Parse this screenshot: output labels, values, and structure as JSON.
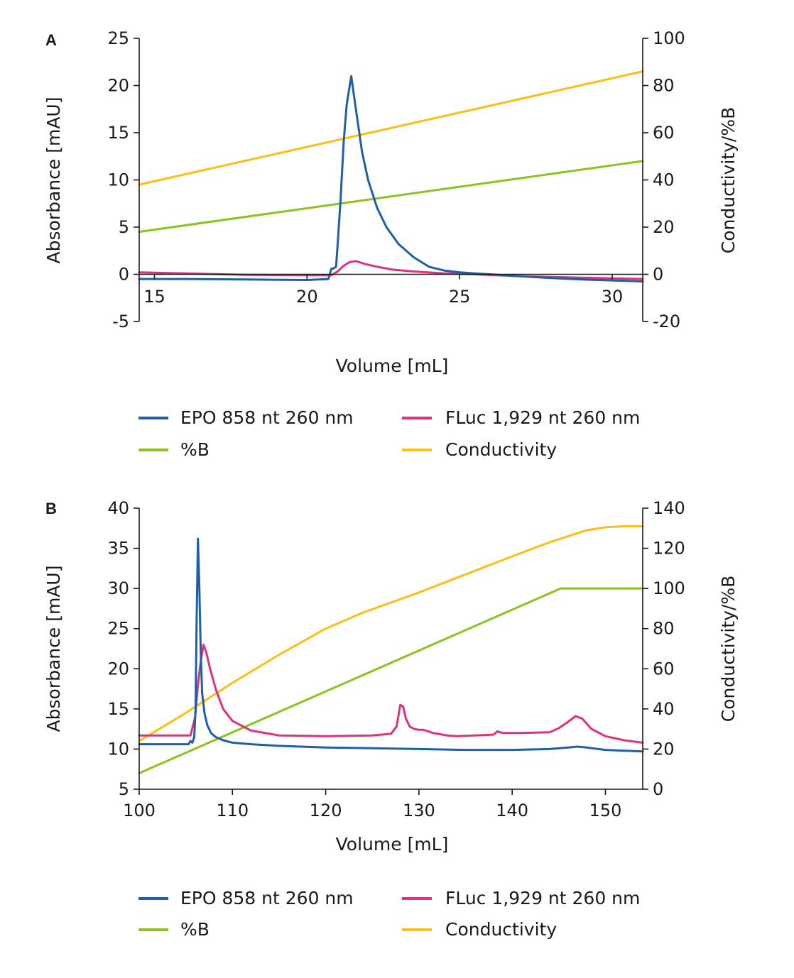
{
  "chart_data": [
    {
      "panel": "A",
      "type": "line",
      "xlabel": "Volume [mL]",
      "ylabel": "Absorbance [mAU]",
      "y2label": "Conductivity/%B",
      "xlim": [
        14.5,
        31
      ],
      "ylim": [
        -5,
        25
      ],
      "y2lim": [
        -20,
        100
      ],
      "xticks": [
        15,
        20,
        25,
        30
      ],
      "yticks": [
        -5,
        0,
        5,
        10,
        15,
        20,
        25
      ],
      "y2ticks": [
        -20,
        0,
        20,
        40,
        60,
        80,
        100
      ],
      "zero_line": true,
      "series": [
        {
          "name": "EPO 858 nt 260 nm",
          "axis": "left",
          "color": "#1f5fa8",
          "x": [
            14.5,
            16,
            18,
            20,
            20.7,
            20.8,
            20.85,
            20.95,
            21.0,
            21.1,
            21.2,
            21.3,
            21.45,
            21.6,
            21.8,
            22.0,
            22.3,
            22.6,
            23.0,
            23.5,
            24.0,
            24.5,
            25.0,
            25.5,
            26.0,
            27.0,
            28.0,
            29.0,
            30.0,
            31.0
          ],
          "y": [
            -0.5,
            -0.5,
            -0.55,
            -0.6,
            -0.5,
            0.6,
            0.6,
            0.8,
            3,
            8,
            14,
            18,
            21,
            17.5,
            13,
            10,
            7,
            5,
            3.2,
            1.8,
            0.8,
            0.4,
            0.2,
            0.1,
            0,
            -0.2,
            -0.4,
            -0.55,
            -0.65,
            -0.75
          ]
        },
        {
          "name": "FLuc 1,929 nt 260 nm",
          "axis": "left",
          "color": "#e0317e",
          "x": [
            14.5,
            16,
            18,
            20,
            20.8,
            21.0,
            21.2,
            21.4,
            21.6,
            21.9,
            22.3,
            22.8,
            23.5,
            24.5,
            25.5,
            27.0,
            29.0,
            31.0
          ],
          "y": [
            0.2,
            0.1,
            -0.05,
            -0.1,
            -0.1,
            0.3,
            0.9,
            1.3,
            1.4,
            1.1,
            0.8,
            0.5,
            0.3,
            0.1,
            0,
            -0.2,
            -0.35,
            -0.5
          ]
        },
        {
          "name": "%B",
          "axis": "right",
          "color": "#8dc21f",
          "x": [
            14.5,
            31
          ],
          "y": [
            18,
            48
          ]
        },
        {
          "name": "Conductivity",
          "axis": "right",
          "color": "#fbbf15",
          "x": [
            14.5,
            31
          ],
          "y": [
            38,
            86
          ]
        }
      ],
      "legend": [
        "EPO 858 nt 260 nm",
        "FLuc 1,929 nt 260 nm",
        "%B",
        "Conductivity"
      ]
    },
    {
      "panel": "B",
      "type": "line",
      "xlabel": "Volume [mL]",
      "ylabel": "Absorbance [mAU]",
      "y2label": "Conductivity/%B",
      "xlim": [
        100,
        154
      ],
      "ylim": [
        5,
        40
      ],
      "y2lim": [
        0,
        140
      ],
      "xticks": [
        100,
        110,
        120,
        130,
        140,
        150
      ],
      "yticks": [
        5,
        10,
        15,
        20,
        25,
        30,
        35,
        40
      ],
      "y2ticks": [
        0,
        20,
        40,
        60,
        80,
        100,
        120,
        140
      ],
      "zero_line": false,
      "series": [
        {
          "name": "EPO 858 nt 260 nm",
          "axis": "left",
          "color": "#1f5fa8",
          "x": [
            100,
            102,
            104,
            105.3,
            105.5,
            105.7,
            105.9,
            106.05,
            106.15,
            106.3,
            106.45,
            106.6,
            106.75,
            107.0,
            107.3,
            107.7,
            108.2,
            109,
            110,
            112,
            115,
            120,
            125,
            130,
            135,
            140,
            144,
            146,
            147,
            148,
            150,
            152,
            154
          ],
          "y": [
            10.6,
            10.6,
            10.6,
            10.6,
            11,
            10.8,
            11.5,
            15,
            25,
            36.2,
            30,
            22,
            17,
            14.5,
            13,
            12,
            11.5,
            11.1,
            10.8,
            10.6,
            10.4,
            10.2,
            10.1,
            10,
            9.9,
            9.9,
            10,
            10.2,
            10.3,
            10.2,
            9.9,
            9.8,
            9.7
          ]
        },
        {
          "name": "FLuc 1,929 nt 260 nm",
          "axis": "left",
          "color": "#e0317e",
          "x": [
            100,
            102,
            104,
            105.5,
            106.0,
            106.3,
            106.6,
            106.9,
            107.2,
            107.6,
            108.2,
            109,
            110,
            112,
            115,
            120,
            125,
            127,
            127.6,
            128.0,
            128.3,
            128.6,
            129.0,
            129.5,
            130,
            130.5,
            131,
            131.5,
            132,
            133,
            134,
            136,
            138,
            138.4,
            139,
            141,
            144,
            145,
            146,
            146.8,
            147.5,
            148.5,
            150,
            152,
            154
          ],
          "y": [
            11.7,
            11.7,
            11.7,
            11.7,
            14,
            18,
            21,
            23,
            22,
            20,
            17.5,
            15,
            13.5,
            12.3,
            11.7,
            11.6,
            11.7,
            11.9,
            12.8,
            15.5,
            15.3,
            13.8,
            12.8,
            12.5,
            12.4,
            12.4,
            12.2,
            12.0,
            11.9,
            11.7,
            11.6,
            11.7,
            11.8,
            12.2,
            12.0,
            12.0,
            12.1,
            12.6,
            13.4,
            14.1,
            13.8,
            12.5,
            11.6,
            11.1,
            10.8
          ]
        },
        {
          "name": "%B",
          "axis": "right",
          "color": "#8dc21f",
          "x": [
            100,
            145.2,
            154
          ],
          "y": [
            8,
            100,
            100
          ]
        },
        {
          "name": "Conductivity",
          "axis": "right",
          "color": "#fbbf15",
          "x": [
            100,
            105,
            110,
            115,
            120,
            124,
            130,
            135,
            140,
            144,
            146,
            148,
            150,
            152,
            154
          ],
          "y": [
            24,
            38,
            53,
            67,
            80,
            88,
            98,
            107,
            116,
            123,
            126,
            129,
            130.5,
            131,
            131
          ]
        }
      ],
      "legend": [
        "EPO 858 nt 260 nm",
        "FLuc 1,929 nt 260 nm",
        "%B",
        "Conductivity"
      ]
    }
  ]
}
